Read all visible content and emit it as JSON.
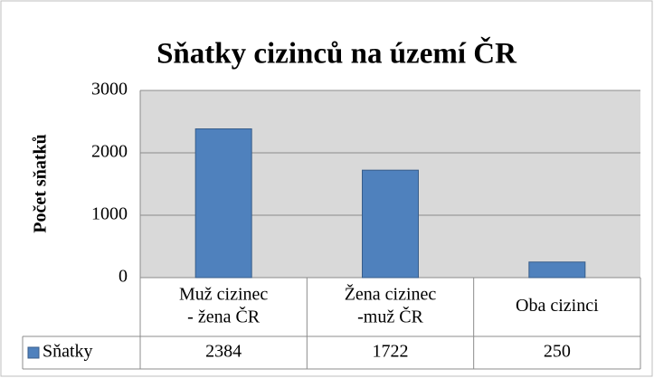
{
  "chart_data": {
    "type": "bar",
    "title": "Sňatky cizinců na území ČR",
    "y_label": "Počet sňatků",
    "categories": [
      [
        "Muž cizinec",
        "- žena ČR"
      ],
      [
        "Žena cizinec",
        "-muž ČR"
      ],
      [
        "Oba cizinci"
      ]
    ],
    "series": [
      {
        "name": "Sňatky",
        "color": "#4f81bd",
        "values": [
          2384,
          1722,
          250
        ]
      }
    ],
    "ylim": [
      0,
      3000
    ],
    "yticks": [
      0,
      1000,
      2000,
      3000
    ],
    "grid": true
  }
}
